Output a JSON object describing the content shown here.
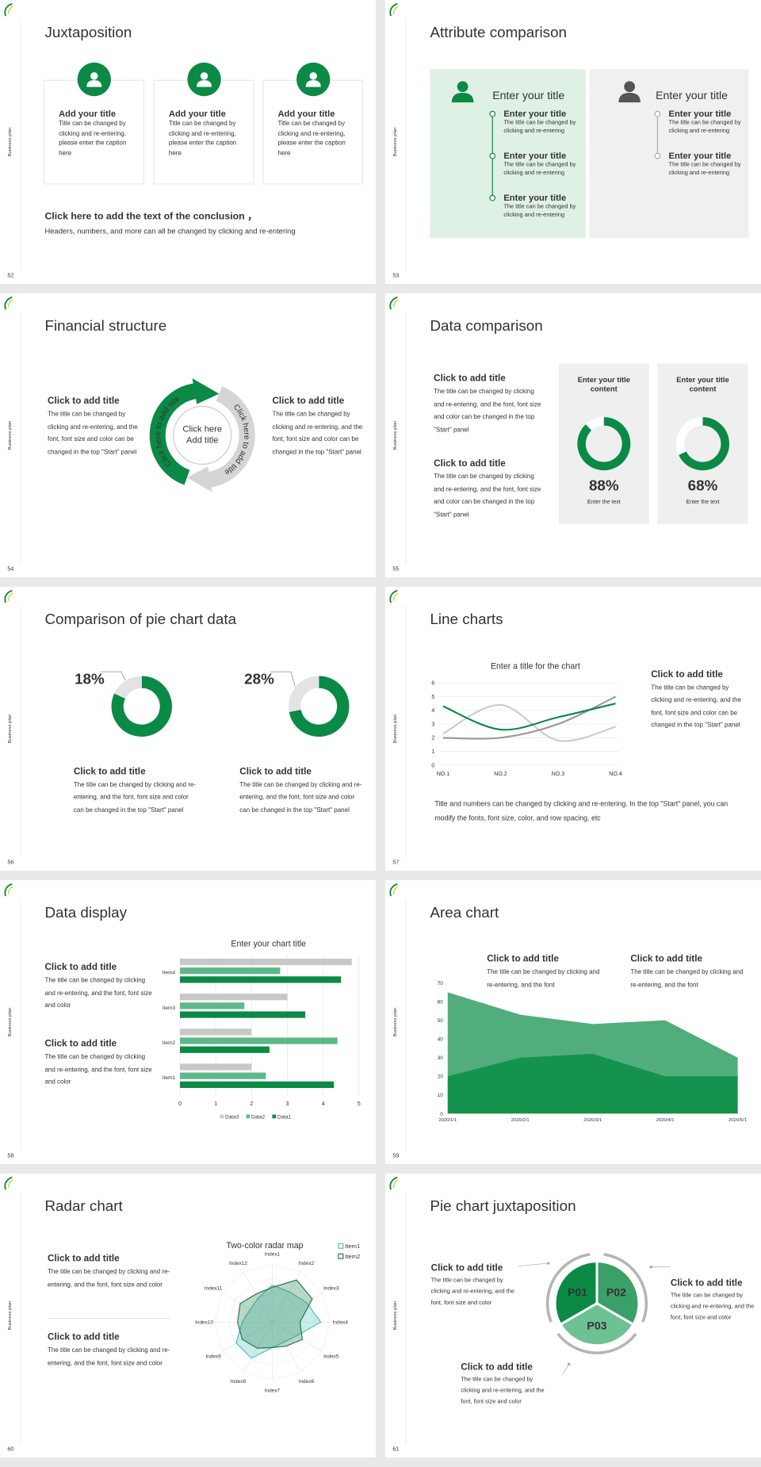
{
  "slides": [
    {
      "title": "Juxtaposition",
      "side": "Business plan",
      "page": "52",
      "cards": [
        {
          "title": "Add your title",
          "text": "Title can be changed by clicking and re-entering, please enter the caption here"
        },
        {
          "title": "Add your title",
          "text": "Title can be changed by clicking and re-entering, please enter the caption here"
        },
        {
          "title": "Add your title",
          "text": "Title can be changed by clicking and re-entering, please enter the caption here"
        }
      ],
      "conclusion": "Click here to add the text of the conclusion ，",
      "note": "Headers, numbers, and more can all be changed by clicking and re-entering"
    },
    {
      "title": "Attribute comparison",
      "side": "Business plan",
      "page": "53",
      "panels": [
        {
          "heading": "Enter your title",
          "items": [
            {
              "title": "Enter your title",
              "text": "The title can be changed by clicking and re-entering"
            },
            {
              "title": "Enter your title",
              "text": "The title can be changed by clicking and re-entering"
            },
            {
              "title": "Enter your title",
              "text": "The title can be changed by clicking and re-entering"
            }
          ]
        },
        {
          "heading": "Enter your title",
          "items": [
            {
              "title": "Enter your title",
              "text": "The title can be changed by clicking and re-entering"
            },
            {
              "title": "Enter your title",
              "text": "The title can be changed by clicking and re-entering"
            }
          ]
        }
      ]
    },
    {
      "title": "Financial structure",
      "side": "Business plan",
      "page": "54",
      "blocks": [
        {
          "title": "Click to add title",
          "text": "The title can be changed by clicking and re-entering, and the font, font size and color can be changed in the top \"Start\" panel"
        },
        {
          "title": "Click to add title",
          "text": "The title can be changed by clicking and re-entering, and the font, font size and color can be changed in the top \"Start\" panel"
        }
      ],
      "center": "Click here Add title",
      "arc_labels": [
        "Click here to add title",
        "Click here to add title"
      ]
    },
    {
      "title": "Data comparison",
      "side": "Business plan",
      "page": "55",
      "blocks": [
        {
          "title": "Click to add title",
          "text": "The title can be changed by clicking and re-entering, and the font, font size and color can be changed in the top \"Start\" panel"
        },
        {
          "title": "Click to add title",
          "text": "The title can be changed by clicking and re-entering, and the font, font size and color can be changed in the top \"Start\" panel"
        }
      ],
      "cards": [
        {
          "title": "Enter your title content",
          "value": 88,
          "value_label": "88%",
          "caption": "Enter the text"
        },
        {
          "title": "Enter your title content",
          "value": 68,
          "value_label": "68%",
          "caption": "Enter the text"
        }
      ]
    },
    {
      "title": "Comparison of pie chart data",
      "side": "Business plan",
      "page": "56",
      "donuts": [
        {
          "value": 18,
          "value_label": "18%",
          "title": "Click to add title",
          "text": "The title can be changed by clicking and re-entering, and the font, font size and color can be changed in the top \"Start\" panel"
        },
        {
          "value": 28,
          "value_label": "28%",
          "title": "Click to add title",
          "text": "The title can be changed by clicking and re-entering, and the font, font size and color can be changed in the top \"Start\" panel"
        }
      ]
    },
    {
      "title": "Line charts",
      "side": "Business plan",
      "page": "57",
      "blocks": [
        {
          "title": "Click to add title",
          "text": "The title can be changed by clicking and re-entering, and the font, font size and color can be changed in the top \"Start\" panel"
        }
      ],
      "note": "Title and numbers can be changed by clicking and re-entering. In the top \"Start\" panel, you can modify the fonts, font size, color, and row spacing, etc",
      "chart": {
        "type": "line",
        "title": "Enter a title for the chart",
        "categories": [
          "NO.1",
          "NO.2",
          "NO.3",
          "NO.4"
        ],
        "ylim": [
          0,
          6
        ],
        "yticks": [
          0,
          1,
          2,
          3,
          4,
          5,
          6
        ],
        "grid": true,
        "series": [
          {
            "color": "#cccccc",
            "values": [
              2.3,
              4.4,
              1.8,
              2.8
            ]
          },
          {
            "color": "#999999",
            "values": [
              2,
              2,
              3,
              5
            ]
          },
          {
            "color": "#0a8a45",
            "values": [
              4.3,
              2.6,
              3.5,
              4.5
            ]
          }
        ]
      }
    },
    {
      "title": "Data display",
      "side": "Business plan",
      "page": "58",
      "blocks": [
        {
          "title": "Click to add title",
          "text": "The title can be changed by clicking and re-entering, and the font, font size and color"
        },
        {
          "title": "Click to add title",
          "text": "The title can be changed by clicking and re-entering, and the font, font size and color"
        }
      ],
      "chart": {
        "type": "bar",
        "title": "Enter your chart title",
        "categories": [
          "Item1",
          "Item2",
          "Item3",
          "Item4"
        ],
        "xlim": [
          0,
          5
        ],
        "xticks": [
          0,
          1,
          2,
          3,
          4,
          5
        ],
        "grid": true,
        "series": [
          {
            "name": "Data3",
            "color": "#c8c8c8",
            "values": [
              2,
              2,
              3,
              4.8
            ]
          },
          {
            "name": "Data2",
            "color": "#5fb88a",
            "values": [
              2.4,
              4.4,
              1.8,
              2.8
            ]
          },
          {
            "name": "Data1",
            "color": "#0a8a45",
            "values": [
              4.3,
              2.5,
              3.5,
              4.5
            ]
          }
        ]
      }
    },
    {
      "title": "Area chart",
      "side": "Business plan",
      "page": "59",
      "blocks": [
        {
          "title": "Click to add title",
          "text": "The title can be changed by clicking and re-entering, and the font"
        },
        {
          "title": "Click to add title",
          "text": "The title can be changed by clicking and re-entering, and the font"
        }
      ],
      "chart": {
        "type": "area",
        "x": [
          "2020/1/1",
          "2020/2/1",
          "2020/3/1",
          "2020/4/1",
          "2020/5/1"
        ],
        "ylim": [
          0,
          70
        ],
        "yticks": [
          0,
          10,
          20,
          30,
          40,
          50,
          60,
          70
        ],
        "grid": false,
        "series": [
          {
            "color": "#52ad7c",
            "values": [
              65,
              53,
              48,
              50,
              30
            ]
          },
          {
            "color": "#14934c",
            "values": [
              20,
              30,
              32,
              20,
              20
            ]
          }
        ]
      }
    },
    {
      "title": "Radar chart",
      "side": "Business plan",
      "page": "60",
      "blocks": [
        {
          "title": "Click to add title",
          "text": "The title can be changed by clicking and re-entering, and the font, font size and color"
        },
        {
          "title": "Click to add title",
          "text": "The title can be changed by clicking and re-entering, and the font, font size and color"
        }
      ],
      "chart": {
        "type": "radar",
        "title": "Two-color radar map",
        "categories": [
          "Index1",
          "Index2",
          "Index3",
          "Index4",
          "Index5",
          "Index6",
          "Index7",
          "Index8",
          "Index9",
          "Index10",
          "Index11",
          "Index12"
        ],
        "rlim": [
          0,
          5
        ],
        "series": [
          {
            "name": "Item1",
            "color": "#4fbfbf",
            "values": [
              3.2,
              3,
              3.4,
              4.2,
              2.4,
              2,
              2.2,
              3.6,
              3.6,
              2.6,
              2.2,
              2.4
            ]
          },
          {
            "name": "Item2",
            "color": "#1e7b45",
            "values": [
              3,
              4.2,
              4,
              2.4,
              3,
              2.4,
              2.2,
              2.6,
              3,
              3,
              3.2,
              2.8
            ]
          }
        ]
      }
    },
    {
      "title": "Pie chart juxtaposition",
      "side": "Business plan",
      "page": "61",
      "blocks": [
        {
          "title": "Click to add title",
          "text": "The title can be changed by clicking and re-entering, and the font, font size and color"
        },
        {
          "title": "Click to add title",
          "text": "The title can be changed by clicking and re-entering, and the font, font size and color"
        },
        {
          "title": "Click to add title",
          "text": "The title can be changed by clicking and re-entering, and the font, font size and color"
        }
      ],
      "segments": [
        "P01",
        "P02",
        "P03"
      ]
    }
  ]
}
